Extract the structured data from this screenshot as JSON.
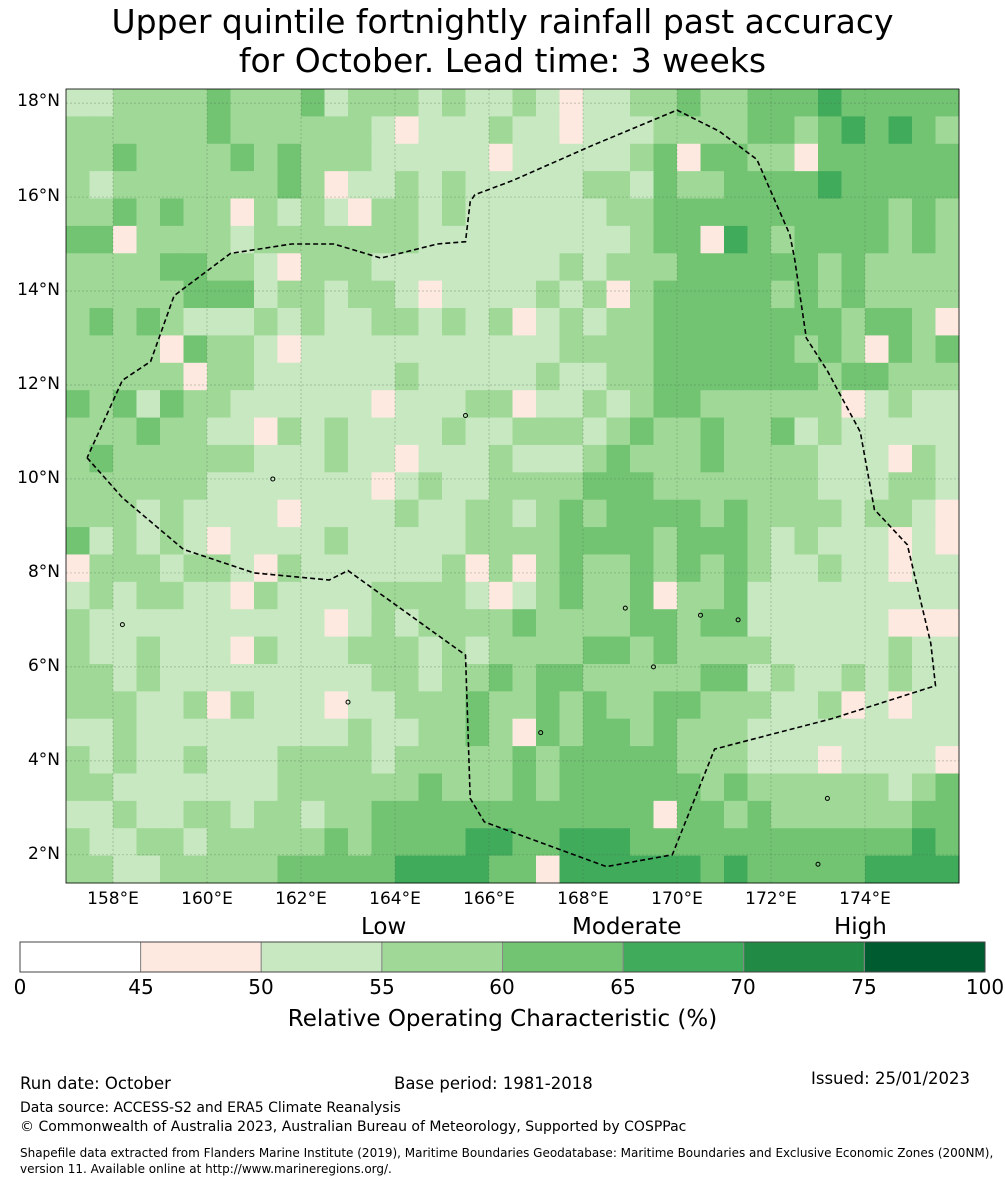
{
  "title": {
    "line1": "Upper quintile fortnightly rainfall past accuracy",
    "line2": "for October. Lead time: 3 weeks"
  },
  "map": {
    "lat_labels": [
      "18°N",
      "16°N",
      "14°N",
      "12°N",
      "10°N",
      "8°N",
      "6°N",
      "4°N",
      "2°N"
    ],
    "lat_values": [
      18,
      16,
      14,
      12,
      10,
      8,
      6,
      4,
      2
    ],
    "lon_labels": [
      "158°E",
      "160°E",
      "162°E",
      "164°E",
      "166°E",
      "168°E",
      "170°E",
      "172°E",
      "174°E"
    ],
    "lon_values": [
      158,
      160,
      162,
      164,
      166,
      168,
      170,
      172,
      174
    ],
    "extent": {
      "lon_min": 157,
      "lon_max": 176,
      "lat_min": 1.4,
      "lat_max": 18.3
    },
    "eez_boundary": [
      [
        157.45,
        10.45
      ],
      [
        158.2,
        9.6
      ],
      [
        159.5,
        8.5
      ],
      [
        161,
        8.0
      ],
      [
        162.6,
        7.85
      ],
      [
        163.0,
        8.05
      ],
      [
        165.5,
        6.25
      ],
      [
        165.6,
        3.2
      ],
      [
        165.9,
        2.7
      ],
      [
        168.5,
        1.75
      ],
      [
        169.9,
        2.0
      ],
      [
        170.8,
        4.25
      ],
      [
        173.3,
        4.9
      ],
      [
        175.5,
        5.6
      ],
      [
        175.4,
        6.5
      ],
      [
        174.9,
        8.6
      ],
      [
        174.2,
        9.35
      ],
      [
        173.9,
        11.0
      ],
      [
        173.2,
        12.3
      ],
      [
        172.75,
        13.0
      ],
      [
        172.5,
        14.7
      ],
      [
        172.4,
        15.2
      ],
      [
        171.7,
        16.8
      ],
      [
        170.9,
        17.4
      ],
      [
        170.0,
        17.85
      ],
      [
        168.2,
        17.1
      ],
      [
        166.5,
        16.35
      ],
      [
        165.7,
        16.05
      ],
      [
        165.6,
        15.9
      ],
      [
        165.5,
        15.05
      ],
      [
        164.9,
        15.0
      ],
      [
        163.7,
        14.7
      ],
      [
        162.7,
        15.0
      ],
      [
        161.8,
        15.0
      ],
      [
        160.5,
        14.8
      ],
      [
        159.3,
        13.9
      ],
      [
        158.8,
        12.5
      ],
      [
        158.2,
        12.1
      ],
      [
        157.45,
        10.45
      ]
    ],
    "islands": [
      [
        169.5,
        6.0
      ],
      [
        167.1,
        4.6
      ],
      [
        163.0,
        5.25
      ],
      [
        158.2,
        6.9
      ],
      [
        161.4,
        10.0
      ],
      [
        165.5,
        11.35
      ],
      [
        171.3,
        7.0
      ],
      [
        170.5,
        7.1
      ],
      [
        168.9,
        7.25
      ],
      [
        173.2,
        3.2
      ],
      [
        173.0,
        1.8
      ]
    ]
  },
  "colorbar": {
    "categories": [
      "Low",
      "Moderate",
      "High"
    ],
    "ticks": [
      "0",
      "45",
      "50",
      "55",
      "60",
      "65",
      "70",
      "75",
      "100"
    ],
    "colors": [
      "#ffffff",
      "#fee9e0",
      "#c8e8c2",
      "#a0d897",
      "#72c473",
      "#41ab5c",
      "#218a44",
      "#005b31"
    ],
    "label": "Relative Operating Characteristic (%)"
  },
  "footer": {
    "run_date": "Run date: October",
    "base_period": "Base period: 1981-2018",
    "issued": "Issued: 25/01/2023",
    "data_source": "Data source: ACCESS-S2 and ERA5 Climate Reanalysis",
    "copyright": "© Commonwealth of Australia 2023, Australian Bureau of Meteorology, Supported by COSPPac",
    "shapefile_line1": "Shapefile data extracted from Flanders Marine Institute (2019), Maritime Boundaries Geodatabase: Maritime Boundaries and Exclusive Economic Zones (200NM),",
    "shapefile_line2": "version 11. Available online at http://www.marineregions.org/."
  }
}
